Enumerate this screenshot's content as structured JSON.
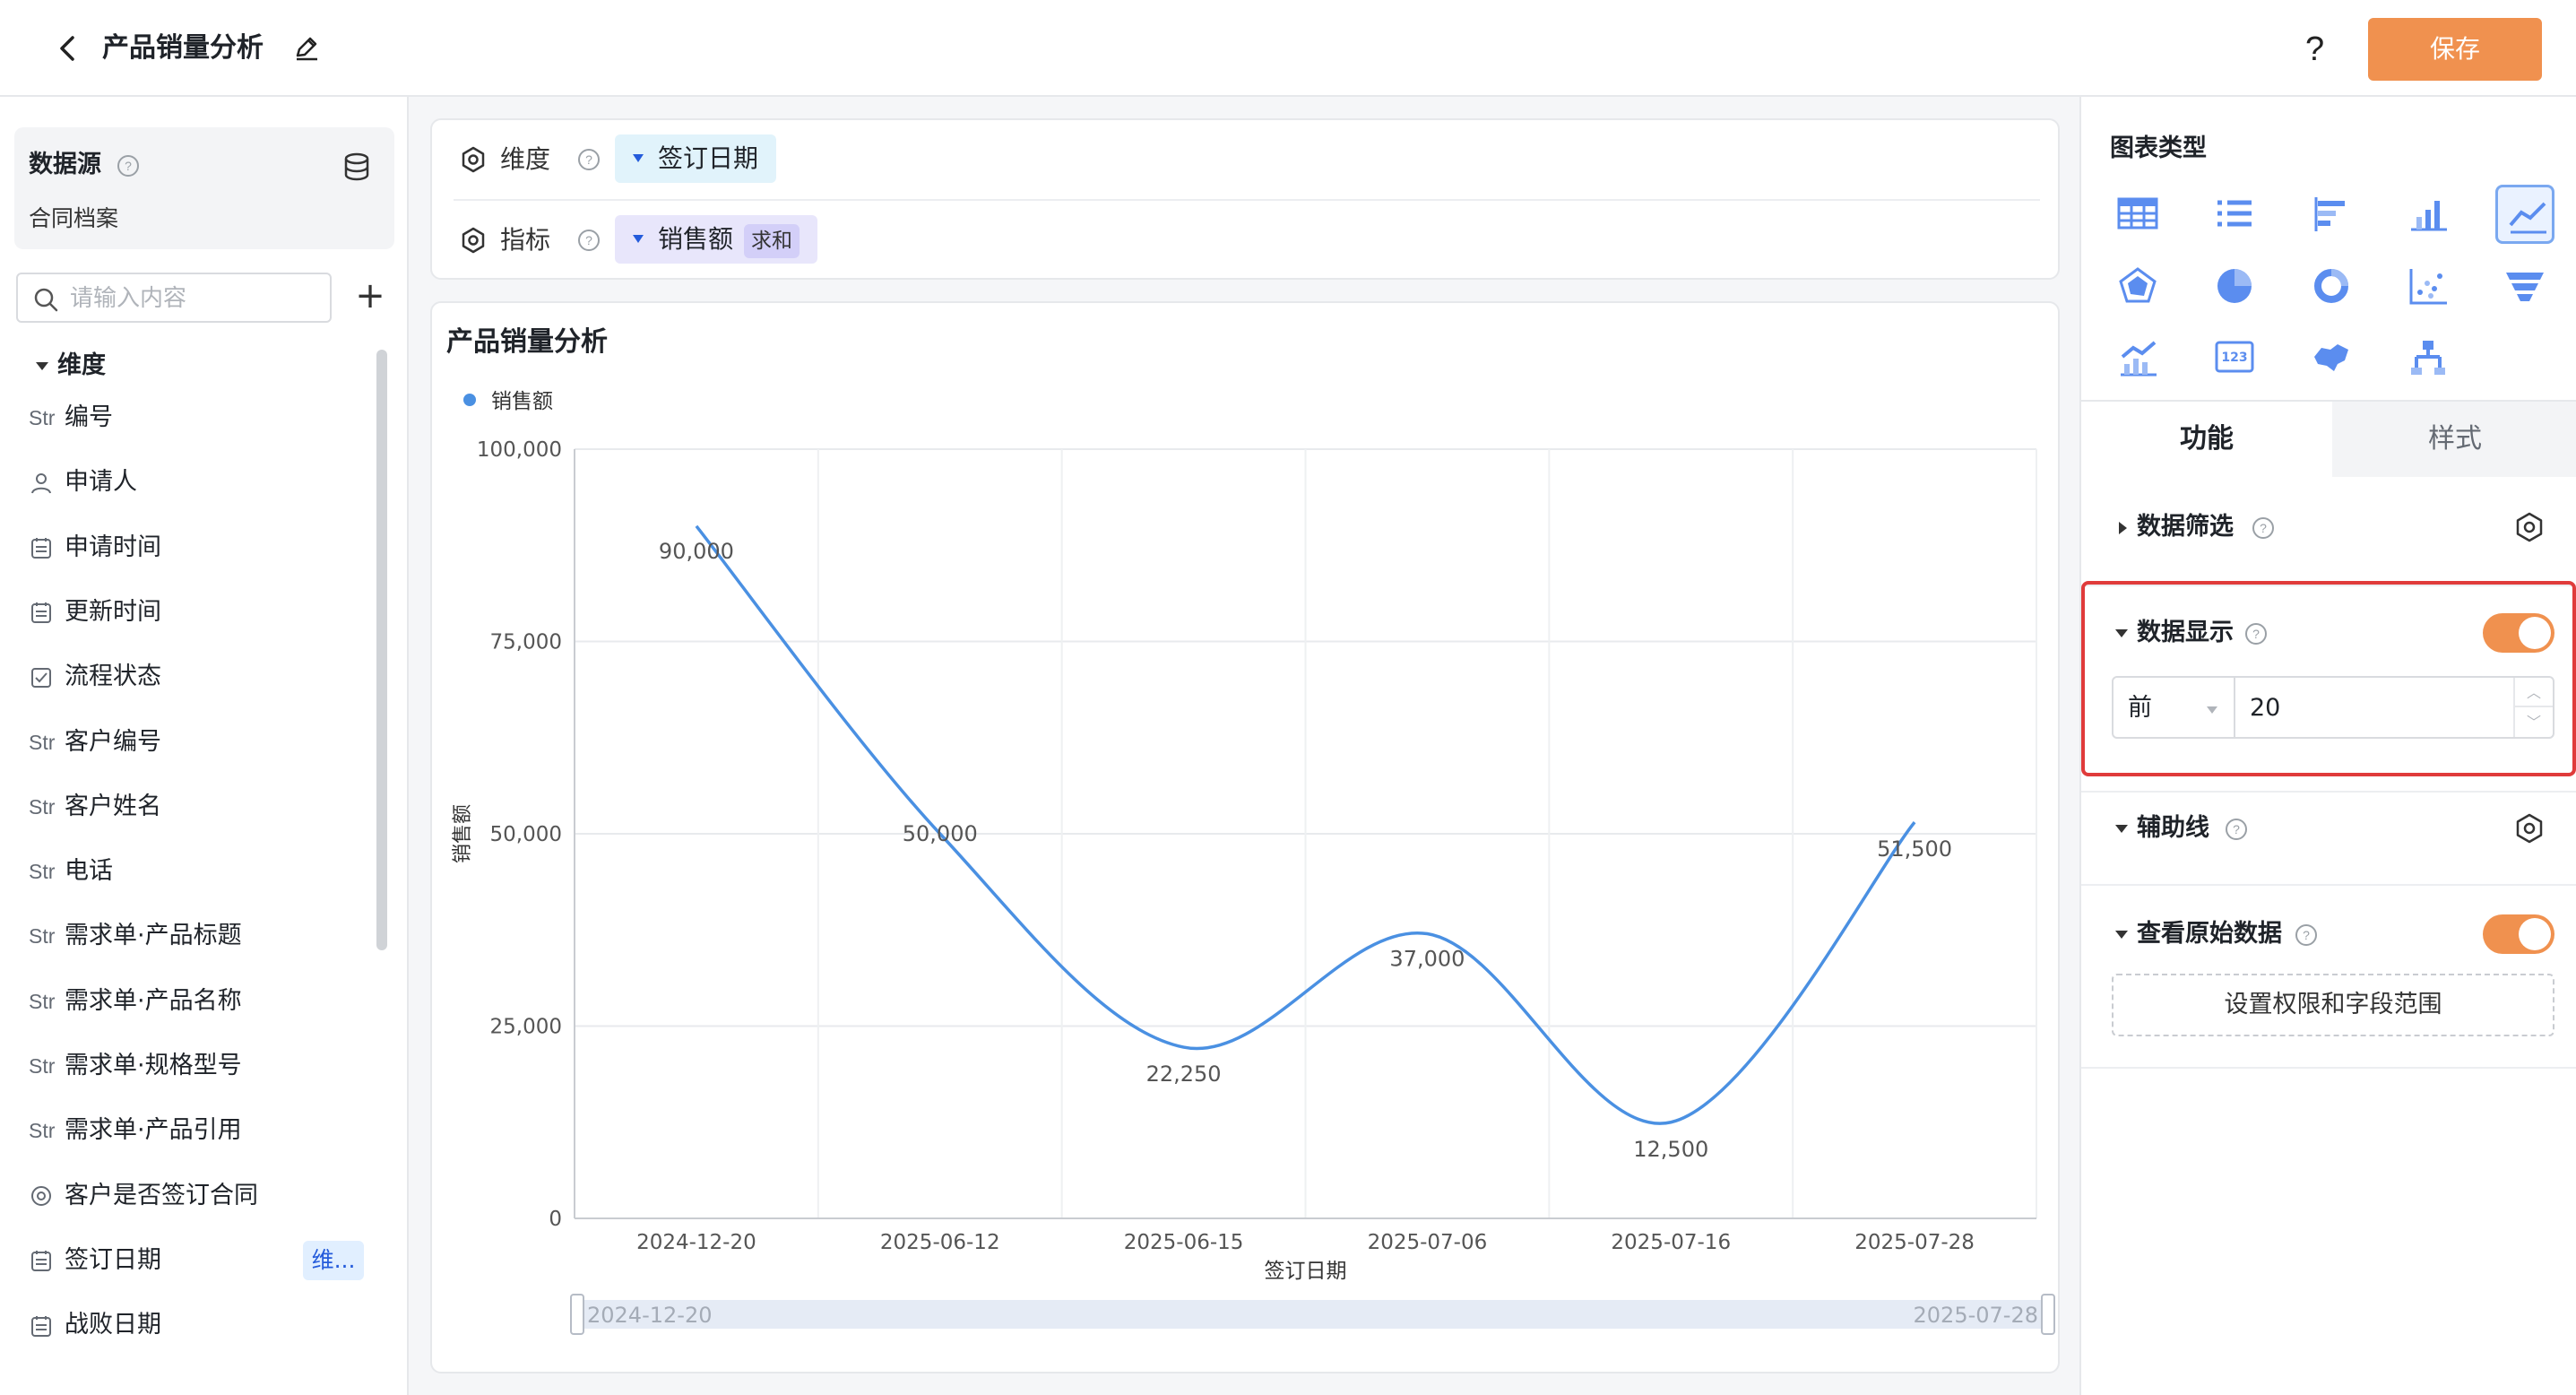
{
  "header": {
    "title": "产品销量分析",
    "help": "?",
    "save_label": "保存"
  },
  "datasource": {
    "title": "数据源",
    "name": "合同档案"
  },
  "search": {
    "placeholder": "请输入内容"
  },
  "dimensions": {
    "heading": "维度",
    "items": [
      {
        "type": "Str",
        "label": "编号"
      },
      {
        "type": "user",
        "label": "申请人"
      },
      {
        "type": "date",
        "label": "申请时间"
      },
      {
        "type": "date",
        "label": "更新时间"
      },
      {
        "type": "check",
        "label": "流程状态"
      },
      {
        "type": "Str",
        "label": "客户编号"
      },
      {
        "type": "Str",
        "label": "客户姓名"
      },
      {
        "type": "Str",
        "label": "电话"
      },
      {
        "type": "Str",
        "label": "需求单·产品标题"
      },
      {
        "type": "Str",
        "label": "需求单·产品名称"
      },
      {
        "type": "Str",
        "label": "需求单·规格型号"
      },
      {
        "type": "Str",
        "label": "需求单·产品引用"
      },
      {
        "type": "radio",
        "label": "客户是否签订合同"
      },
      {
        "type": "date",
        "label": "签订日期",
        "badge": "维..."
      },
      {
        "type": "date",
        "label": "战败日期"
      }
    ]
  },
  "config": {
    "dimension": {
      "label": "维度",
      "value": "签订日期"
    },
    "metric": {
      "label": "指标",
      "value": "销售额",
      "aggregation": "求和"
    }
  },
  "chart_data": {
    "type": "line",
    "title": "产品销量分析",
    "categories": [
      "2024-12-20",
      "2025-06-12",
      "2025-06-15",
      "2025-07-06",
      "2025-07-16",
      "2025-07-28"
    ],
    "series": [
      {
        "name": "销售额",
        "values": [
          90000,
          50000,
          22250,
          37000,
          12500,
          51500
        ]
      }
    ],
    "data_labels": [
      "90,000",
      "50,000",
      "22,250",
      "37,000",
      "12,500",
      "51,500"
    ],
    "y_ticks": [
      "0",
      "25,000",
      "50,000",
      "75,000",
      "100,000"
    ],
    "ylim": [
      0,
      100000
    ],
    "xlabel": "签订日期",
    "ylabel": "销售额",
    "legend": "top-left",
    "grid": true,
    "line_color": "#4a90e2",
    "smooth": true,
    "range_start": "2024-12-20",
    "range_end": "2025-07-28"
  },
  "panel": {
    "chart_type_title": "图表类型",
    "chart_types": [
      "table-icon",
      "list-icon",
      "bar-horizontal-icon",
      "bar-icon",
      "line-icon",
      "radar-icon",
      "pie-icon",
      "donut-icon",
      "scatter-icon",
      "funnel-icon",
      "combo-icon",
      "number-icon",
      "map-icon",
      "tree-icon"
    ],
    "selected_type": "line-icon",
    "tab_function": "功能",
    "tab_style": "样式",
    "filter_title": "数据筛选",
    "display_title": "数据显示",
    "display_enabled": true,
    "display_mode": "前",
    "display_count": "20",
    "refline_title": "辅助线",
    "raw_title": "查看原始数据",
    "raw_enabled": true,
    "permission_button": "设置权限和字段范围",
    "accent_color": "#f0914f"
  }
}
